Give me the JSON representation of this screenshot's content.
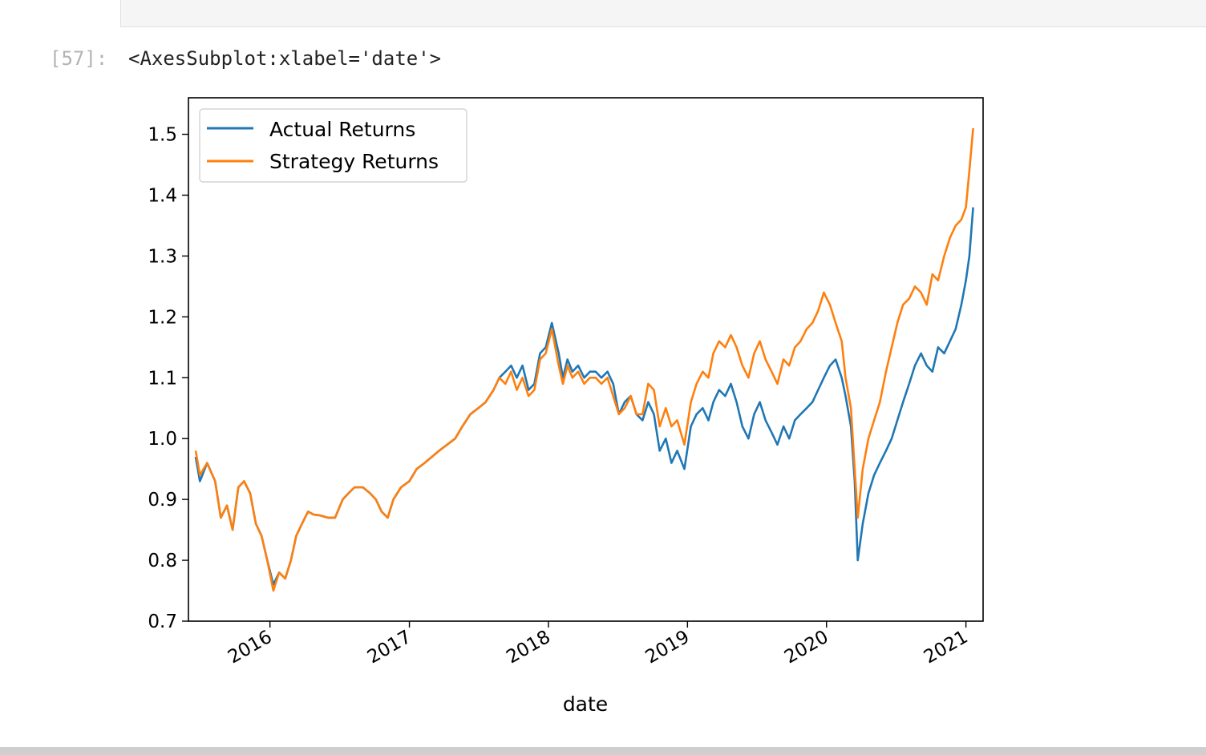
{
  "cell": {
    "prompt": "[57]:",
    "output_repr": "<AxesSubplot:xlabel='date'>"
  },
  "chart_data": {
    "type": "line",
    "title": "",
    "xlabel": "date",
    "ylabel": "",
    "x_range": [
      "2015-06-01",
      "2021-02-15"
    ],
    "ylim": [
      0.7,
      1.56
    ],
    "yticks": [
      0.7,
      0.8,
      0.9,
      1.0,
      1.1,
      1.2,
      1.3,
      1.4,
      1.5
    ],
    "ytick_labels": [
      "0.7",
      "0.8",
      "0.9",
      "1.0",
      "1.1",
      "1.2",
      "1.3",
      "1.4",
      "1.5"
    ],
    "xticks": [
      "2016-01-01",
      "2017-01-01",
      "2018-01-01",
      "2019-01-01",
      "2020-01-01",
      "2021-01-01"
    ],
    "xtick_labels": [
      "2016",
      "2017",
      "2018",
      "2019",
      "2020",
      "2021"
    ],
    "grid": false,
    "legend_position": "upper-left",
    "series": [
      {
        "name": "Actual Returns",
        "color": "#1f77b4",
        "x": [
          "2015-06-20",
          "2015-07-01",
          "2015-07-20",
          "2015-08-10",
          "2015-08-25",
          "2015-09-10",
          "2015-09-25",
          "2015-10-10",
          "2015-10-25",
          "2015-11-10",
          "2015-11-25",
          "2015-12-10",
          "2015-12-25",
          "2016-01-10",
          "2016-01-25",
          "2016-02-10",
          "2016-02-25",
          "2016-03-10",
          "2016-03-25",
          "2016-04-10",
          "2016-04-25",
          "2016-05-10",
          "2016-06-01",
          "2016-06-20",
          "2016-07-10",
          "2016-07-25",
          "2016-08-10",
          "2016-09-01",
          "2016-09-20",
          "2016-10-05",
          "2016-10-20",
          "2016-11-05",
          "2016-11-20",
          "2016-12-10",
          "2017-01-01",
          "2017-01-20",
          "2017-02-10",
          "2017-03-01",
          "2017-03-20",
          "2017-04-10",
          "2017-05-01",
          "2017-05-20",
          "2017-06-10",
          "2017-07-01",
          "2017-07-20",
          "2017-08-10",
          "2017-08-25",
          "2017-09-10",
          "2017-09-25",
          "2017-10-10",
          "2017-10-25",
          "2017-11-10",
          "2017-11-25",
          "2017-12-10",
          "2017-12-25",
          "2018-01-10",
          "2018-01-28",
          "2018-02-08",
          "2018-02-20",
          "2018-03-05",
          "2018-03-20",
          "2018-04-05",
          "2018-04-20",
          "2018-05-05",
          "2018-05-20",
          "2018-06-05",
          "2018-06-20",
          "2018-07-05",
          "2018-07-20",
          "2018-08-05",
          "2018-08-20",
          "2018-09-05",
          "2018-09-20",
          "2018-10-05",
          "2018-10-20",
          "2018-11-05",
          "2018-11-20",
          "2018-12-05",
          "2018-12-24",
          "2019-01-10",
          "2019-01-25",
          "2019-02-10",
          "2019-02-25",
          "2019-03-10",
          "2019-03-25",
          "2019-04-10",
          "2019-04-25",
          "2019-05-10",
          "2019-05-25",
          "2019-06-10",
          "2019-06-25",
          "2019-07-10",
          "2019-07-25",
          "2019-08-10",
          "2019-08-25",
          "2019-09-10",
          "2019-09-25",
          "2019-10-10",
          "2019-10-25",
          "2019-11-10",
          "2019-11-25",
          "2019-12-10",
          "2019-12-25",
          "2020-01-10",
          "2020-01-25",
          "2020-02-10",
          "2020-02-20",
          "2020-03-05",
          "2020-03-15",
          "2020-03-23",
          "2020-04-05",
          "2020-04-20",
          "2020-05-05",
          "2020-05-20",
          "2020-06-05",
          "2020-06-20",
          "2020-07-05",
          "2020-07-20",
          "2020-08-05",
          "2020-08-20",
          "2020-09-05",
          "2020-09-20",
          "2020-10-05",
          "2020-10-20",
          "2020-11-05",
          "2020-11-20",
          "2020-12-05",
          "2020-12-20",
          "2021-01-01",
          "2021-01-10",
          "2021-01-20"
        ],
        "y": [
          0.97,
          0.93,
          0.96,
          0.93,
          0.87,
          0.89,
          0.85,
          0.92,
          0.93,
          0.91,
          0.86,
          0.84,
          0.8,
          0.76,
          0.78,
          0.77,
          0.8,
          0.84,
          0.86,
          0.88,
          0.875,
          0.874,
          0.87,
          0.87,
          0.9,
          0.91,
          0.92,
          0.92,
          0.91,
          0.9,
          0.88,
          0.87,
          0.9,
          0.92,
          0.93,
          0.95,
          0.96,
          0.97,
          0.98,
          0.99,
          1.0,
          1.02,
          1.04,
          1.05,
          1.06,
          1.08,
          1.1,
          1.11,
          1.12,
          1.1,
          1.12,
          1.08,
          1.09,
          1.14,
          1.15,
          1.19,
          1.14,
          1.1,
          1.13,
          1.11,
          1.12,
          1.1,
          1.11,
          1.11,
          1.1,
          1.11,
          1.09,
          1.04,
          1.06,
          1.07,
          1.04,
          1.03,
          1.06,
          1.04,
          0.98,
          1.0,
          0.96,
          0.98,
          0.95,
          1.02,
          1.04,
          1.05,
          1.03,
          1.06,
          1.08,
          1.07,
          1.09,
          1.06,
          1.02,
          1.0,
          1.04,
          1.06,
          1.03,
          1.01,
          0.99,
          1.02,
          1.0,
          1.03,
          1.04,
          1.05,
          1.06,
          1.08,
          1.1,
          1.12,
          1.13,
          1.1,
          1.07,
          1.02,
          0.93,
          0.8,
          0.86,
          0.91,
          0.94,
          0.96,
          0.98,
          1.0,
          1.03,
          1.06,
          1.09,
          1.12,
          1.14,
          1.12,
          1.11,
          1.15,
          1.14,
          1.16,
          1.18,
          1.22,
          1.26,
          1.3,
          1.38
        ]
      },
      {
        "name": "Strategy Returns",
        "color": "#ff7f0e",
        "x": [
          "2015-06-20",
          "2015-07-01",
          "2015-07-20",
          "2015-08-10",
          "2015-08-25",
          "2015-09-10",
          "2015-09-25",
          "2015-10-10",
          "2015-10-25",
          "2015-11-10",
          "2015-11-25",
          "2015-12-10",
          "2015-12-25",
          "2016-01-10",
          "2016-01-25",
          "2016-02-10",
          "2016-02-25",
          "2016-03-10",
          "2016-03-25",
          "2016-04-10",
          "2016-04-25",
          "2016-05-10",
          "2016-06-01",
          "2016-06-20",
          "2016-07-10",
          "2016-07-25",
          "2016-08-10",
          "2016-09-01",
          "2016-09-20",
          "2016-10-05",
          "2016-10-20",
          "2016-11-05",
          "2016-11-20",
          "2016-12-10",
          "2017-01-01",
          "2017-01-20",
          "2017-02-10",
          "2017-03-01",
          "2017-03-20",
          "2017-04-10",
          "2017-05-01",
          "2017-05-20",
          "2017-06-10",
          "2017-07-01",
          "2017-07-20",
          "2017-08-10",
          "2017-08-25",
          "2017-09-10",
          "2017-09-25",
          "2017-10-10",
          "2017-10-25",
          "2017-11-10",
          "2017-11-25",
          "2017-12-10",
          "2017-12-25",
          "2018-01-10",
          "2018-01-28",
          "2018-02-08",
          "2018-02-20",
          "2018-03-05",
          "2018-03-20",
          "2018-04-05",
          "2018-04-20",
          "2018-05-05",
          "2018-05-20",
          "2018-06-05",
          "2018-06-20",
          "2018-07-05",
          "2018-07-20",
          "2018-08-05",
          "2018-08-20",
          "2018-09-05",
          "2018-09-20",
          "2018-10-05",
          "2018-10-20",
          "2018-11-05",
          "2018-11-20",
          "2018-12-05",
          "2018-12-24",
          "2019-01-10",
          "2019-01-25",
          "2019-02-10",
          "2019-02-25",
          "2019-03-10",
          "2019-03-25",
          "2019-04-10",
          "2019-04-25",
          "2019-05-10",
          "2019-05-25",
          "2019-06-10",
          "2019-06-25",
          "2019-07-10",
          "2019-07-25",
          "2019-08-10",
          "2019-08-25",
          "2019-09-10",
          "2019-09-25",
          "2019-10-10",
          "2019-10-25",
          "2019-11-10",
          "2019-11-25",
          "2019-12-10",
          "2019-12-25",
          "2020-01-10",
          "2020-01-25",
          "2020-02-10",
          "2020-02-20",
          "2020-03-05",
          "2020-03-15",
          "2020-03-23",
          "2020-04-05",
          "2020-04-20",
          "2020-05-05",
          "2020-05-20",
          "2020-06-05",
          "2020-06-20",
          "2020-07-05",
          "2020-07-20",
          "2020-08-05",
          "2020-08-20",
          "2020-09-05",
          "2020-09-20",
          "2020-10-05",
          "2020-10-20",
          "2020-11-05",
          "2020-11-20",
          "2020-12-05",
          "2020-12-20",
          "2021-01-01",
          "2021-01-10",
          "2021-01-20"
        ],
        "y": [
          0.98,
          0.94,
          0.96,
          0.93,
          0.87,
          0.89,
          0.85,
          0.92,
          0.93,
          0.91,
          0.86,
          0.84,
          0.8,
          0.75,
          0.78,
          0.77,
          0.8,
          0.84,
          0.86,
          0.88,
          0.875,
          0.874,
          0.87,
          0.87,
          0.9,
          0.91,
          0.92,
          0.92,
          0.91,
          0.9,
          0.88,
          0.87,
          0.9,
          0.92,
          0.93,
          0.95,
          0.96,
          0.97,
          0.98,
          0.99,
          1.0,
          1.02,
          1.04,
          1.05,
          1.06,
          1.08,
          1.1,
          1.09,
          1.11,
          1.08,
          1.1,
          1.07,
          1.08,
          1.13,
          1.14,
          1.18,
          1.12,
          1.09,
          1.12,
          1.1,
          1.11,
          1.09,
          1.1,
          1.1,
          1.09,
          1.1,
          1.07,
          1.04,
          1.05,
          1.07,
          1.04,
          1.04,
          1.09,
          1.08,
          1.02,
          1.05,
          1.02,
          1.03,
          0.99,
          1.06,
          1.09,
          1.11,
          1.1,
          1.14,
          1.16,
          1.15,
          1.17,
          1.15,
          1.12,
          1.1,
          1.14,
          1.16,
          1.13,
          1.11,
          1.09,
          1.13,
          1.12,
          1.15,
          1.16,
          1.18,
          1.19,
          1.21,
          1.24,
          1.22,
          1.19,
          1.16,
          1.1,
          1.05,
          0.95,
          0.87,
          0.95,
          1.0,
          1.03,
          1.06,
          1.11,
          1.15,
          1.19,
          1.22,
          1.23,
          1.25,
          1.24,
          1.22,
          1.27,
          1.26,
          1.3,
          1.33,
          1.35,
          1.36,
          1.38,
          1.44,
          1.51
        ]
      }
    ]
  }
}
